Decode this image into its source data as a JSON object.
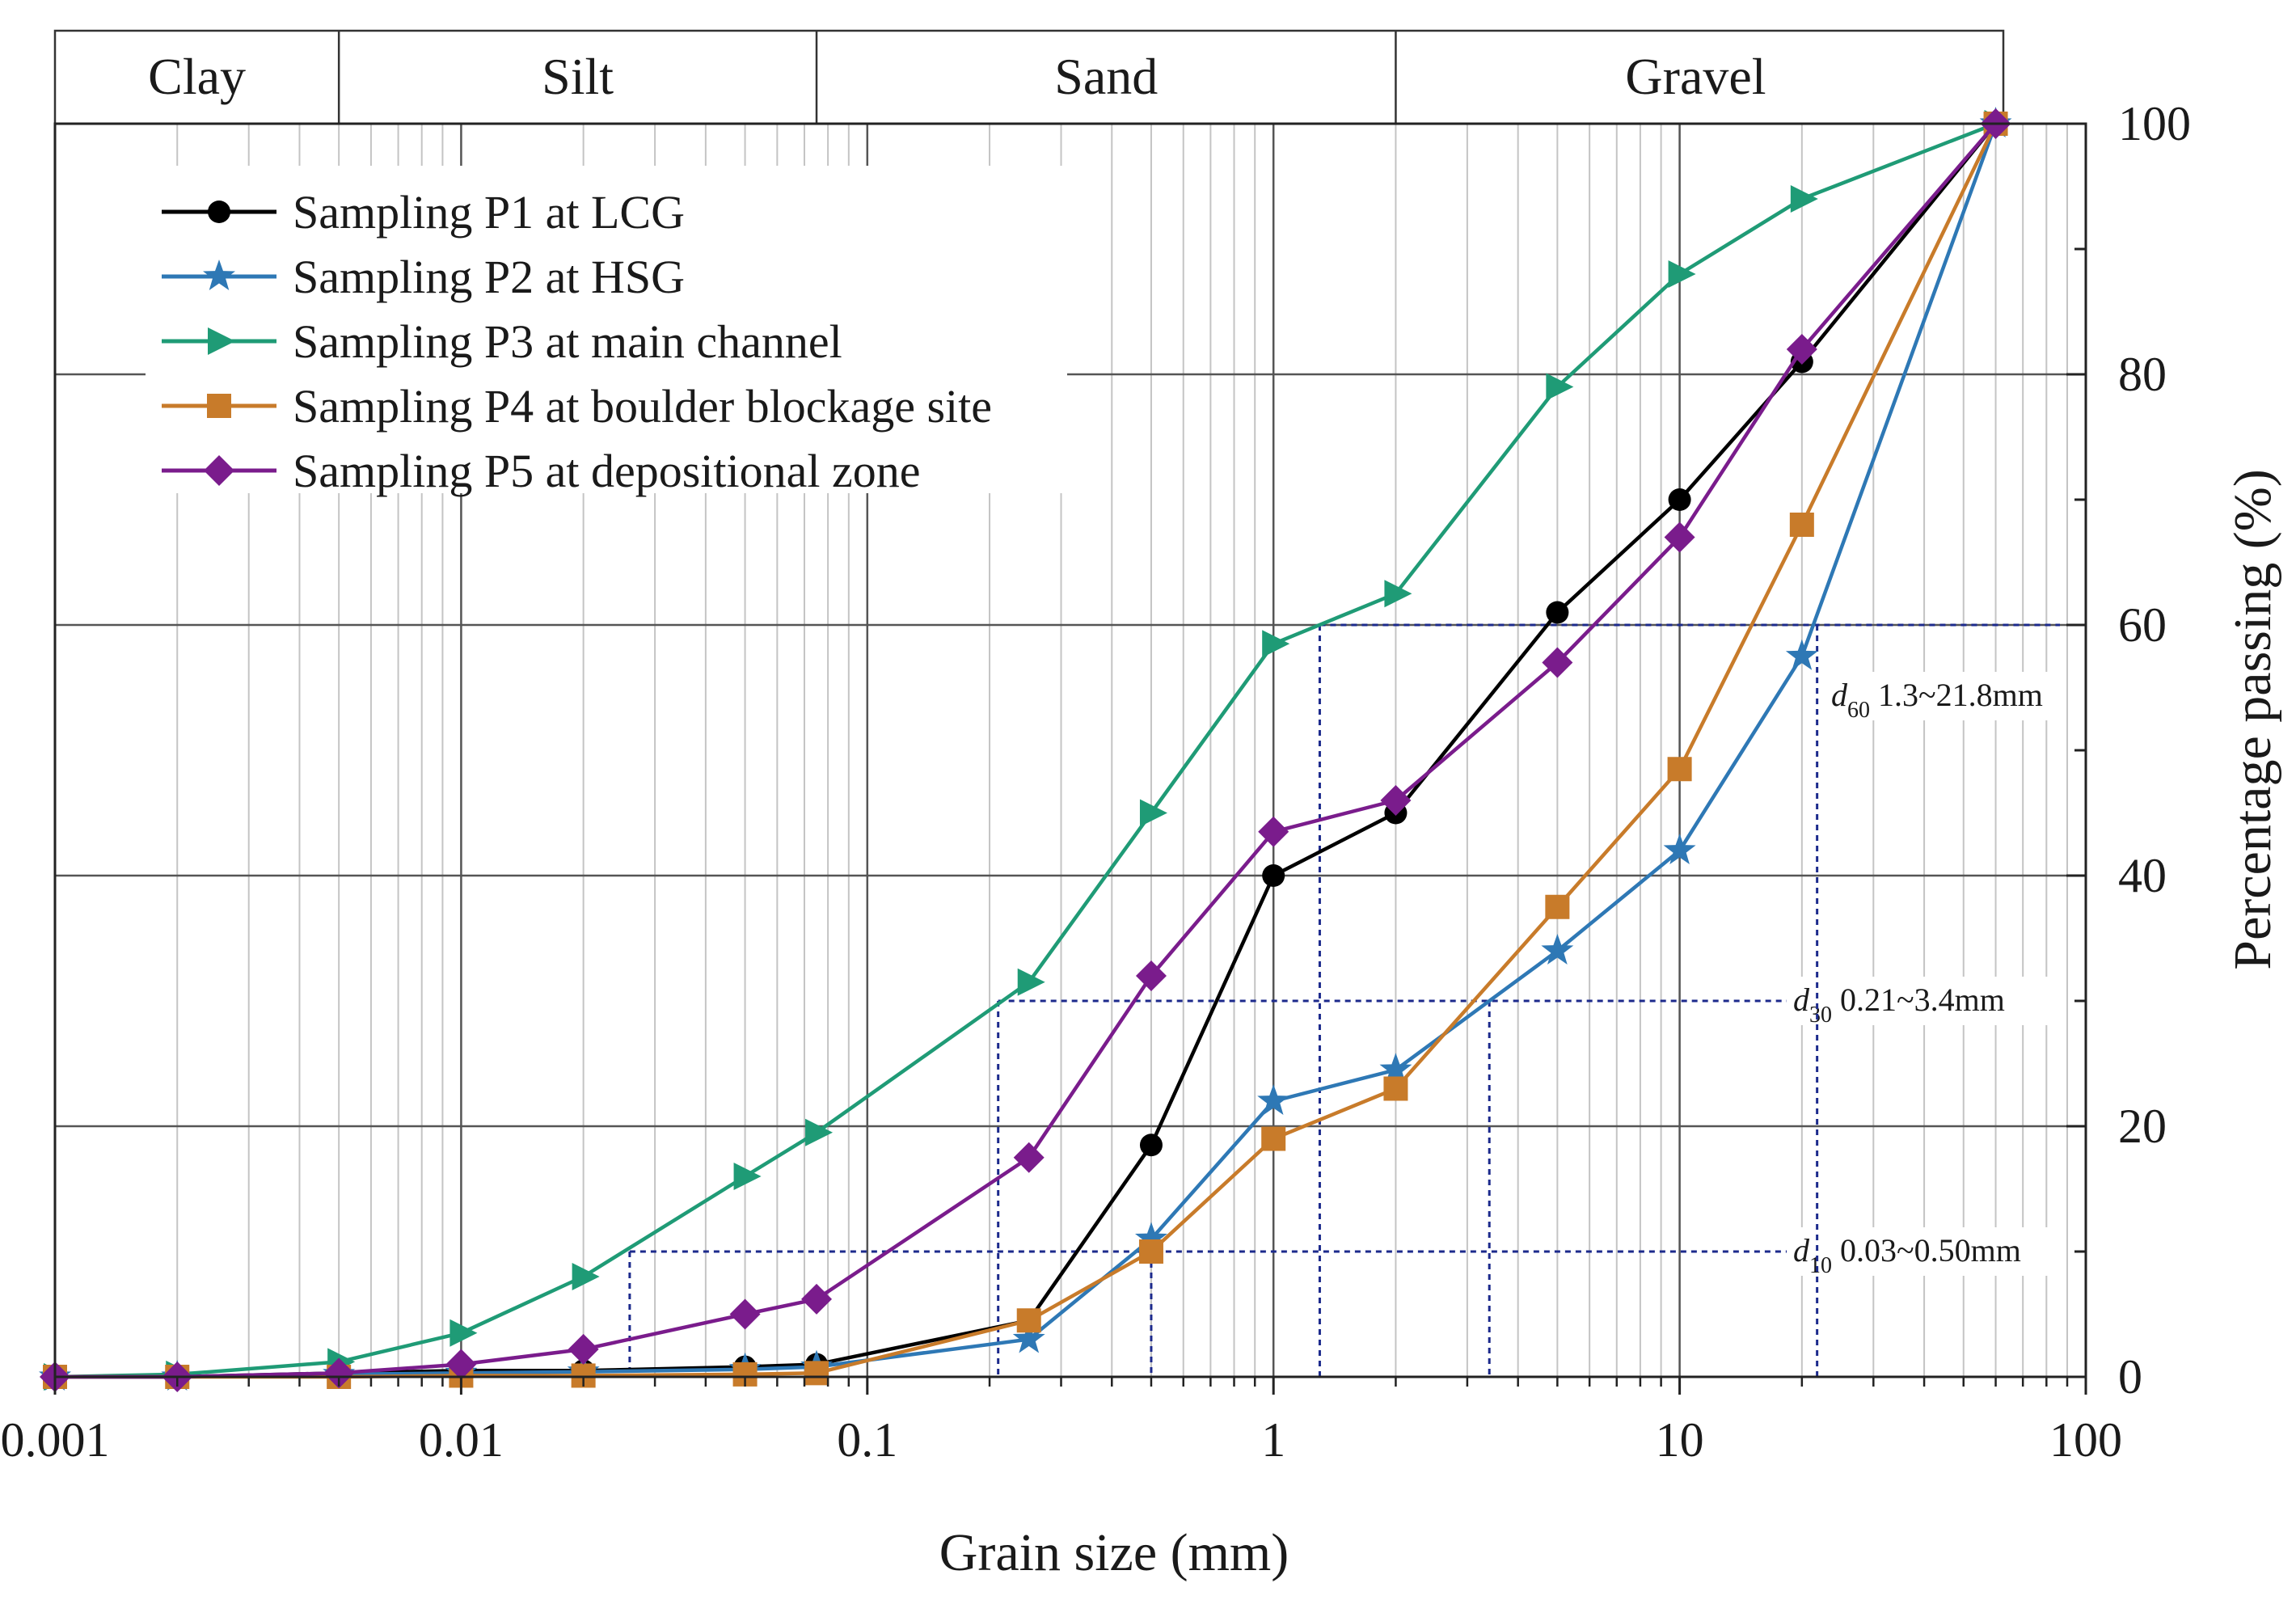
{
  "chart_data": {
    "type": "line",
    "xscale": "log",
    "xlabel": "Grain size (mm)",
    "ylabel": "Percentage passing (%)",
    "xlim": [
      0.001,
      100
    ],
    "ylim": [
      0,
      100
    ],
    "x_ticks": [
      {
        "value": 0.001,
        "label": "0.001"
      },
      {
        "value": 0.01,
        "label": "0.01"
      },
      {
        "value": 0.1,
        "label": "0.1"
      },
      {
        "value": 1,
        "label": "1"
      },
      {
        "value": 10,
        "label": "10"
      },
      {
        "value": 100,
        "label": "100"
      }
    ],
    "y_ticks": [
      {
        "value": 0,
        "label": "0"
      },
      {
        "value": 20,
        "label": "20"
      },
      {
        "value": 40,
        "label": "40"
      },
      {
        "value": 60,
        "label": "60"
      },
      {
        "value": 80,
        "label": "80"
      },
      {
        "value": 100,
        "label": "100"
      }
    ],
    "grid": true,
    "legend_position": "top-left",
    "bands": [
      {
        "label": "Clay",
        "from": 0.001,
        "to": 0.005
      },
      {
        "label": "Silt",
        "from": 0.005,
        "to": 0.075
      },
      {
        "label": "Sand",
        "from": 0.075,
        "to": 2
      },
      {
        "label": "Gravel",
        "from": 2,
        "to": 60
      }
    ],
    "series": [
      {
        "name": "Sampling P1 at LCG",
        "color": "#000000",
        "marker": "circle",
        "x": [
          0.001,
          0.002,
          0.005,
          0.01,
          0.02,
          0.05,
          0.075,
          0.25,
          0.5,
          1,
          2,
          5,
          10,
          20,
          60
        ],
        "y": [
          0,
          0,
          0.3,
          0.5,
          0.5,
          0.8,
          1,
          4.5,
          18.5,
          40,
          45,
          61,
          70,
          81,
          100
        ]
      },
      {
        "name": "Sampling P2 at HSG",
        "color": "#2e78b5",
        "marker": "star",
        "x": [
          0.001,
          0.002,
          0.005,
          0.01,
          0.02,
          0.05,
          0.075,
          0.25,
          0.5,
          1,
          2,
          5,
          10,
          20,
          60
        ],
        "y": [
          0,
          0,
          0.2,
          0.3,
          0.4,
          0.6,
          0.8,
          3,
          11,
          22,
          24.5,
          34,
          42,
          57.5,
          100
        ]
      },
      {
        "name": "Sampling P3 at main channel",
        "color": "#1f9b76",
        "marker": "triangle-right",
        "x": [
          0.001,
          0.002,
          0.005,
          0.01,
          0.02,
          0.05,
          0.075,
          0.25,
          0.5,
          1,
          2,
          5,
          10,
          20,
          60
        ],
        "y": [
          0,
          0.2,
          1.2,
          3.5,
          8,
          16,
          19.5,
          31.5,
          45,
          58.5,
          62.5,
          79,
          88,
          94,
          100
        ]
      },
      {
        "name": "Sampling P4 at boulder blockage site",
        "color": "#c87b2a",
        "marker": "square",
        "x": [
          0.001,
          0.002,
          0.005,
          0.01,
          0.02,
          0.05,
          0.075,
          0.25,
          0.5,
          1,
          2,
          5,
          10,
          20,
          60
        ],
        "y": [
          0,
          0,
          0,
          0.1,
          0.1,
          0.2,
          0.3,
          4.5,
          10,
          19,
          23,
          37.5,
          48.5,
          68,
          100
        ]
      },
      {
        "name": "Sampling P5 at depositional zone",
        "color": "#7a1c8c",
        "marker": "diamond",
        "x": [
          0.001,
          0.002,
          0.005,
          0.01,
          0.02,
          0.05,
          0.075,
          0.25,
          0.5,
          1,
          2,
          5,
          10,
          20,
          60
        ],
        "y": [
          0,
          0,
          0.3,
          1,
          2.2,
          5,
          6.2,
          17.5,
          32,
          43.5,
          46,
          57,
          67,
          82,
          100
        ]
      }
    ],
    "reference_lines": [
      {
        "name": "d10",
        "symbol": "d",
        "subscript": "10",
        "range_text": "0.03~0.50mm",
        "percent": 10,
        "x_from": 0.026,
        "x_to": 0.5
      },
      {
        "name": "d30",
        "symbol": "d",
        "subscript": "30",
        "range_text": "0.21~3.4mm",
        "percent": 30,
        "x_from": 0.21,
        "x_to": 3.4
      },
      {
        "name": "d60",
        "symbol": "d",
        "subscript": "60",
        "range_text": "1.3~21.8mm",
        "percent": 60,
        "x_from": 1.3,
        "x_to": 21.8
      }
    ],
    "guide_color": "#1c2a8c"
  }
}
